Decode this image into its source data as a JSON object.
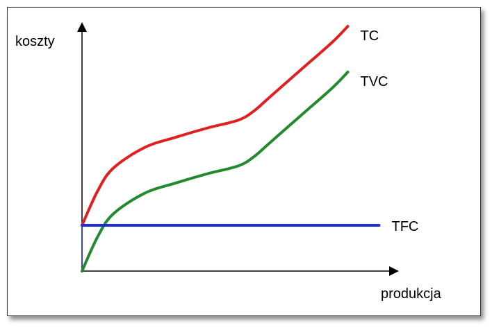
{
  "chart_data": {
    "type": "line",
    "title": "",
    "xlabel": "produkcja",
    "ylabel": "koszty",
    "xlim": [
      0,
      10
    ],
    "ylim": [
      0,
      10
    ],
    "grid": false,
    "series": [
      {
        "name": "TC",
        "color": "#e02020",
        "x": [
          0,
          0.5,
          1,
          2,
          3,
          4,
          5,
          5.5,
          6,
          7,
          8,
          8.5
        ],
        "y": [
          2,
          3.5,
          4.5,
          5.4,
          5.85,
          6.25,
          6.6,
          7,
          7.6,
          8.8,
          10,
          10.7
        ]
      },
      {
        "name": "TVC",
        "color": "#218a2c",
        "x": [
          0,
          0.5,
          1,
          2,
          3,
          4,
          5,
          5.5,
          6,
          7,
          8,
          8.5
        ],
        "y": [
          0,
          1.5,
          2.5,
          3.4,
          3.85,
          4.25,
          4.6,
          5,
          5.6,
          6.8,
          8,
          8.7
        ]
      },
      {
        "name": "TFC",
        "color": "#2030d0",
        "x": [
          0,
          9.5
        ],
        "y": [
          2,
          2
        ]
      }
    ]
  }
}
